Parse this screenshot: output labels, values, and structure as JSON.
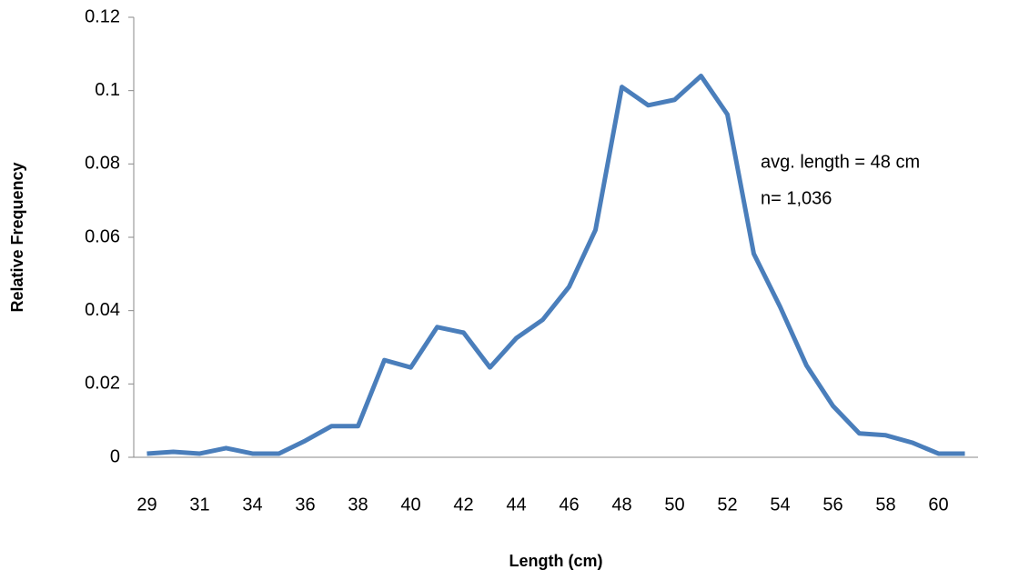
{
  "chart_data": {
    "type": "line",
    "xlabel": "Length (cm)",
    "ylabel": "Relative Frequency",
    "annotations": [
      "avg. length = 48 cm",
      "n= 1,036"
    ],
    "categories": [
      "29",
      null,
      "31",
      null,
      "34",
      null,
      "36",
      null,
      "38",
      null,
      "40",
      null,
      "42",
      null,
      "44",
      null,
      "46",
      null,
      "48",
      null,
      "50",
      null,
      "52",
      null,
      "54",
      null,
      "56",
      null,
      "58",
      null,
      "60",
      null
    ],
    "series": [
      {
        "name": "Relative Frequency",
        "color": "#4a7ebb",
        "values": [
          0.001,
          0.0015,
          0.001,
          0.0025,
          0.001,
          0.001,
          0.0045,
          0.0085,
          0.0085,
          0.0265,
          0.0245,
          0.0355,
          0.034,
          0.0245,
          0.0325,
          0.0375,
          0.0465,
          0.062,
          0.101,
          0.096,
          0.0975,
          0.104,
          0.0935,
          0.0555,
          0.041,
          0.025,
          0.014,
          0.0065,
          0.006,
          0.004,
          0.001,
          0.001
        ]
      }
    ],
    "ylim": [
      0,
      0.12
    ],
    "yticks": [
      0,
      0.02,
      0.04,
      0.06,
      0.08,
      0.1,
      0.12
    ],
    "grid": false
  }
}
